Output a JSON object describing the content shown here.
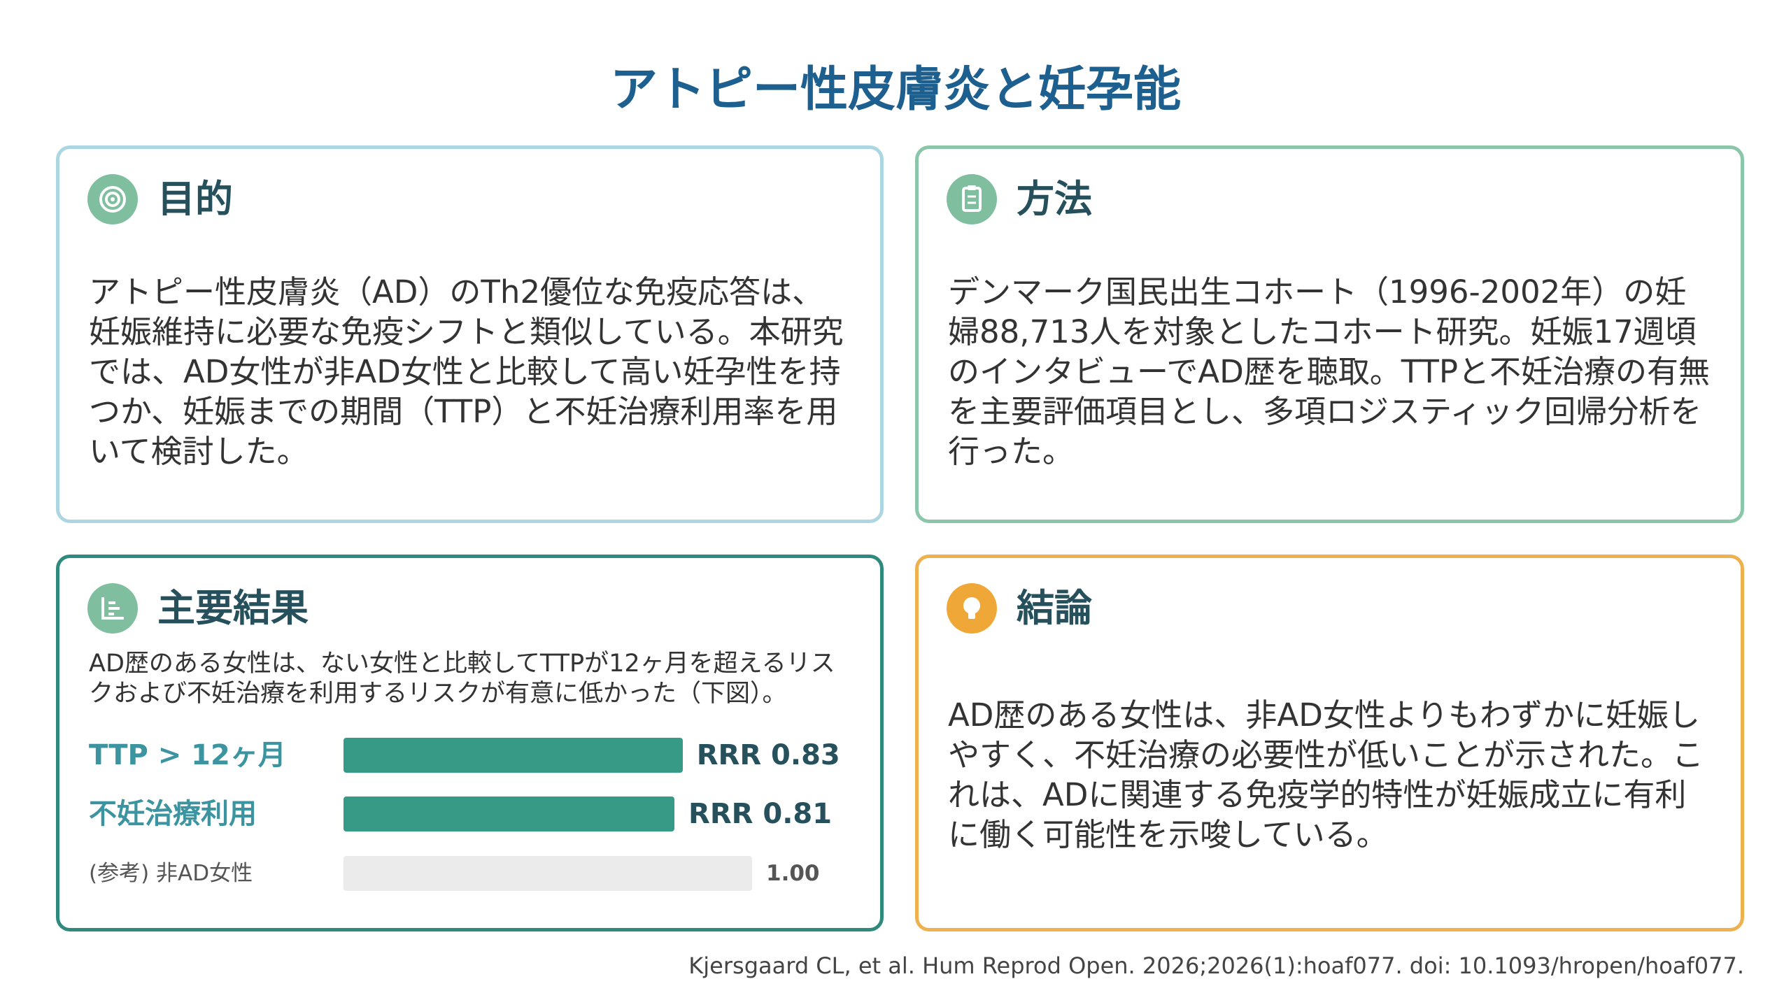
{
  "title": "アトピー性皮膚炎と妊孕能",
  "objective": {
    "heading": "目的",
    "text": "アトピー性皮膚炎（AD）のTh2優位な免疫応答は、妊娠維持に必要な免疫シフトと類似している。本研究では、AD女性が非AD女性と比較して高い妊孕性を持つか、妊娠までの期間（TTP）と不妊治療利用率を用いて検討した。"
  },
  "methods": {
    "heading": "方法",
    "text": "デンマーク国民出生コホート（1996-2002年）の妊婦88,713人を対象としたコホート研究。妊娠17週頃のインタビューでAD歴を聴取。TTPと不妊治療の有無を主要評価項目とし、多項ロジスティック回帰分析を行った。"
  },
  "results": {
    "heading": "主要結果",
    "text": "AD歴のある女性は、ない女性と比較してTTPが12ヶ月を超えるリスクおよび不妊治療を利用するリスクが有意に低かった（下図）。",
    "bars": [
      {
        "label": "TTP > 12ヶ月",
        "value": 0.83,
        "value_label": "RRR 0.83"
      },
      {
        "label": "不妊治療利用",
        "value": 0.81,
        "value_label": "RRR 0.81"
      }
    ],
    "reference": {
      "label": "(参考) 非AD女性",
      "value": 1,
      "value_label": "1.00"
    }
  },
  "conclusion": {
    "heading": "結論",
    "text": "AD歴のある女性は、非AD女性よりもわずかに妊娠しやすく、不妊治療の必要性が低いことが示された。これは、ADに関連する免疫学的特性が妊娠成立に有利に働く可能性を示唆している。"
  },
  "citation": "Kjersgaard CL, et al. Hum Reprod Open. 2026;2026(1):hoaf077. doi: 10.1093/hropen/hoaf077."
}
